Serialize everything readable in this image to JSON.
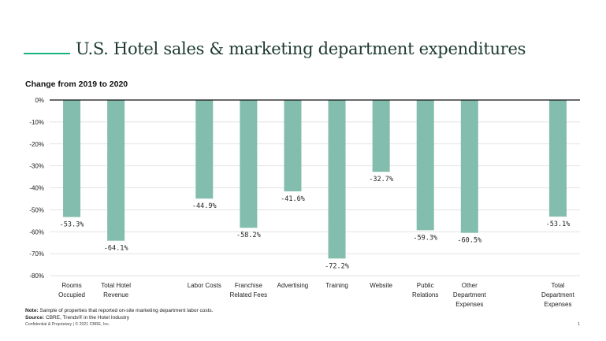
{
  "header": {
    "title": "U.S. Hotel sales & marketing department expenditures",
    "subtitle": "Change from 2019 to 2020"
  },
  "colors": {
    "bar": "#82bdad",
    "accent": "#17b37e",
    "axis": "#111111",
    "grid": "#d9d9d9"
  },
  "chart_data": {
    "type": "bar",
    "title": "U.S. Hotel sales & marketing department expenditures",
    "subtitle": "Change from 2019 to 2020",
    "xlabel": "",
    "ylabel": "",
    "ylim": [
      -80,
      0
    ],
    "yticks": [
      0,
      -10,
      -20,
      -30,
      -40,
      -50,
      -60,
      -70,
      -80
    ],
    "ytick_labels": [
      "0%",
      "-10%",
      "-20%",
      "-30%",
      "-40%",
      "-50%",
      "-60%",
      "-70%",
      "-80%"
    ],
    "grid": true,
    "categories": [
      [
        "Rooms",
        "Occupied"
      ],
      [
        "Total Hotel",
        "Revenue"
      ],
      [],
      [
        "Labor Costs"
      ],
      [
        "Franchise",
        "Related Fees"
      ],
      [
        "Advertising"
      ],
      [
        "Training"
      ],
      [
        "Website"
      ],
      [
        "Public",
        "Relations"
      ],
      [
        "Other",
        "Department",
        "Expenses"
      ],
      [],
      [
        "Total",
        "Department",
        "Expenses"
      ]
    ],
    "values": [
      -53.3,
      -64.1,
      null,
      -44.9,
      -58.2,
      -41.6,
      -72.2,
      -32.7,
      -59.3,
      -60.5,
      null,
      -53.1
    ],
    "data_labels": [
      "-53.3%",
      "-64.1%",
      "",
      "-44.9%",
      "-58.2%",
      "-41.6%",
      "-72.2%",
      "-32.7%",
      "-59.3%",
      "-60.5%",
      "",
      "-53.1%"
    ]
  },
  "notes": {
    "note_label": "Note:",
    "note_text": " Sample of properties that reported on-site marketing department labor costs.",
    "source_label": "Source:",
    "source_text": " CBRE, Trends® in the Hotel Industry",
    "confidential": "Confidential & Proprietary | © 2021 CBRE, Inc.",
    "page_number": "1"
  }
}
